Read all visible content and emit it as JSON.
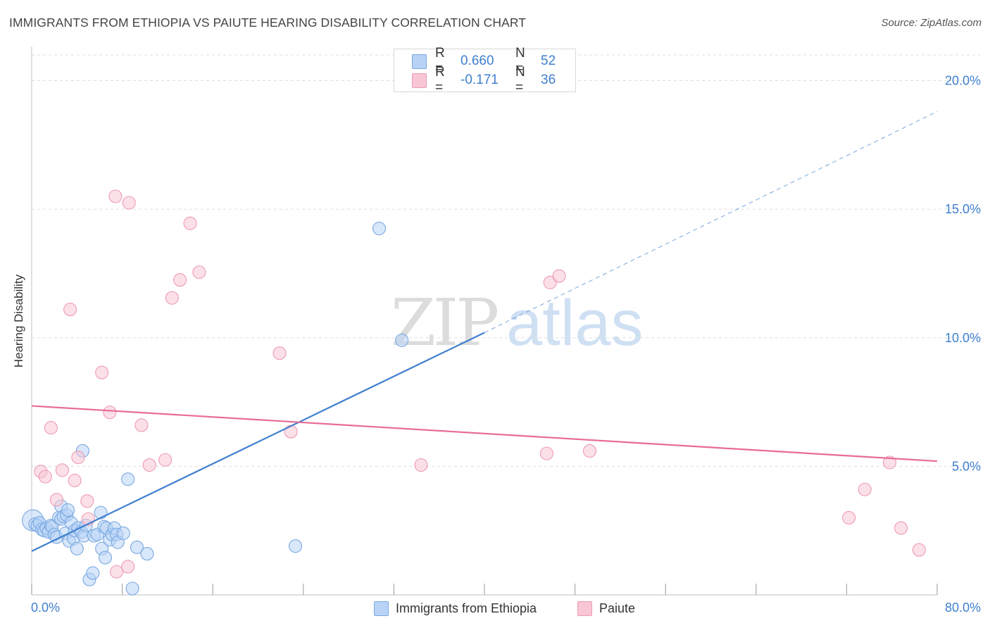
{
  "title": "IMMIGRANTS FROM ETHIOPIA VS PAIUTE HEARING DISABILITY CORRELATION CHART",
  "source": "Source: ZipAtlas.com",
  "watermark": {
    "zip": "ZIP",
    "atlas": "atlas"
  },
  "legend_top": {
    "r_label": "R =",
    "n_label": "N =",
    "rows": [
      {
        "r": "0.660",
        "n": "52",
        "fill": "#b8d3f5",
        "stroke": "#7aa8e0"
      },
      {
        "r": "-0.171",
        "n": "36",
        "fill": "#f8c6d5",
        "stroke": "#ee9ab3"
      }
    ]
  },
  "chart_data": {
    "type": "scatter",
    "title": "IMMIGRANTS FROM ETHIOPIA VS PAIUTE HEARING DISABILITY CORRELATION CHART",
    "xlabel": "",
    "ylabel": "Hearing Disability",
    "xlim": [
      0,
      80
    ],
    "ylim": [
      0,
      21
    ],
    "x_tick_labels": [
      "0.0%",
      "80.0%"
    ],
    "y_ticks": [
      5,
      10,
      15,
      20
    ],
    "y_tick_labels": [
      "5.0%",
      "10.0%",
      "15.0%",
      "20.0%"
    ],
    "grid": true,
    "series": [
      {
        "name": "Immigrants from Ethiopia",
        "color": "#3f7fcf",
        "fill": "#b8d3f5",
        "points": [
          [
            0.1,
            2.9
          ],
          [
            0.3,
            2.75
          ],
          [
            0.5,
            2.7
          ],
          [
            0.7,
            2.8
          ],
          [
            0.9,
            2.55
          ],
          [
            1.1,
            2.5
          ],
          [
            1.3,
            2.6
          ],
          [
            1.5,
            2.45
          ],
          [
            1.7,
            2.7
          ],
          [
            1.8,
            2.65
          ],
          [
            2.0,
            2.35
          ],
          [
            2.2,
            2.25
          ],
          [
            2.4,
            3.0
          ],
          [
            2.6,
            2.95
          ],
          [
            2.6,
            3.45
          ],
          [
            2.8,
            3.05
          ],
          [
            3.0,
            2.4
          ],
          [
            3.1,
            3.1
          ],
          [
            3.2,
            3.3
          ],
          [
            3.3,
            2.1
          ],
          [
            3.5,
            2.8
          ],
          [
            3.7,
            2.2
          ],
          [
            3.8,
            2.5
          ],
          [
            4.0,
            1.8
          ],
          [
            4.1,
            2.6
          ],
          [
            4.4,
            2.45
          ],
          [
            4.5,
            5.6
          ],
          [
            4.6,
            2.3
          ],
          [
            4.8,
            2.7
          ],
          [
            5.1,
            0.6
          ],
          [
            5.4,
            0.85
          ],
          [
            5.5,
            2.3
          ],
          [
            5.8,
            2.35
          ],
          [
            6.1,
            3.2
          ],
          [
            6.2,
            1.8
          ],
          [
            6.4,
            2.65
          ],
          [
            6.5,
            1.45
          ],
          [
            6.6,
            2.6
          ],
          [
            6.9,
            2.15
          ],
          [
            7.1,
            2.35
          ],
          [
            7.3,
            2.6
          ],
          [
            7.5,
            2.35
          ],
          [
            7.6,
            2.05
          ],
          [
            8.1,
            2.4
          ],
          [
            8.5,
            4.5
          ],
          [
            8.9,
            0.25
          ],
          [
            9.3,
            1.85
          ],
          [
            10.2,
            1.6
          ],
          [
            23.3,
            1.9
          ],
          [
            30.7,
            14.25
          ],
          [
            32.7,
            9.9
          ]
        ],
        "trend": {
          "x": [
            0,
            40
          ],
          "y": [
            1.7,
            10.2
          ],
          "dashed_to": [
            80,
            18.8
          ]
        }
      },
      {
        "name": "Paiute",
        "color": "#e86b95",
        "fill": "#f8c6d5",
        "points": [
          [
            0.8,
            4.8
          ],
          [
            1.2,
            4.6
          ],
          [
            1.7,
            6.5
          ],
          [
            2.2,
            3.7
          ],
          [
            2.7,
            4.85
          ],
          [
            3.4,
            11.1
          ],
          [
            3.8,
            4.45
          ],
          [
            4.1,
            5.35
          ],
          [
            4.9,
            3.65
          ],
          [
            5.0,
            2.95
          ],
          [
            6.2,
            8.65
          ],
          [
            6.9,
            7.1
          ],
          [
            7.5,
            0.9
          ],
          [
            7.4,
            15.5
          ],
          [
            8.5,
            1.1
          ],
          [
            8.6,
            15.25
          ],
          [
            9.7,
            6.6
          ],
          [
            10.4,
            5.05
          ],
          [
            11.8,
            5.25
          ],
          [
            12.4,
            11.55
          ],
          [
            13.1,
            12.25
          ],
          [
            14.0,
            14.45
          ],
          [
            14.8,
            12.55
          ],
          [
            21.9,
            9.4
          ],
          [
            22.9,
            6.35
          ],
          [
            34.4,
            5.05
          ],
          [
            45.5,
            5.5
          ],
          [
            45.8,
            12.15
          ],
          [
            46.6,
            12.4
          ],
          [
            49.3,
            5.6
          ],
          [
            72.2,
            3.0
          ],
          [
            73.6,
            4.1
          ],
          [
            75.8,
            5.15
          ],
          [
            76.8,
            2.6
          ],
          [
            78.4,
            1.75
          ]
        ],
        "trend": {
          "x": [
            0,
            80
          ],
          "y": [
            7.35,
            5.2
          ]
        }
      }
    ]
  }
}
